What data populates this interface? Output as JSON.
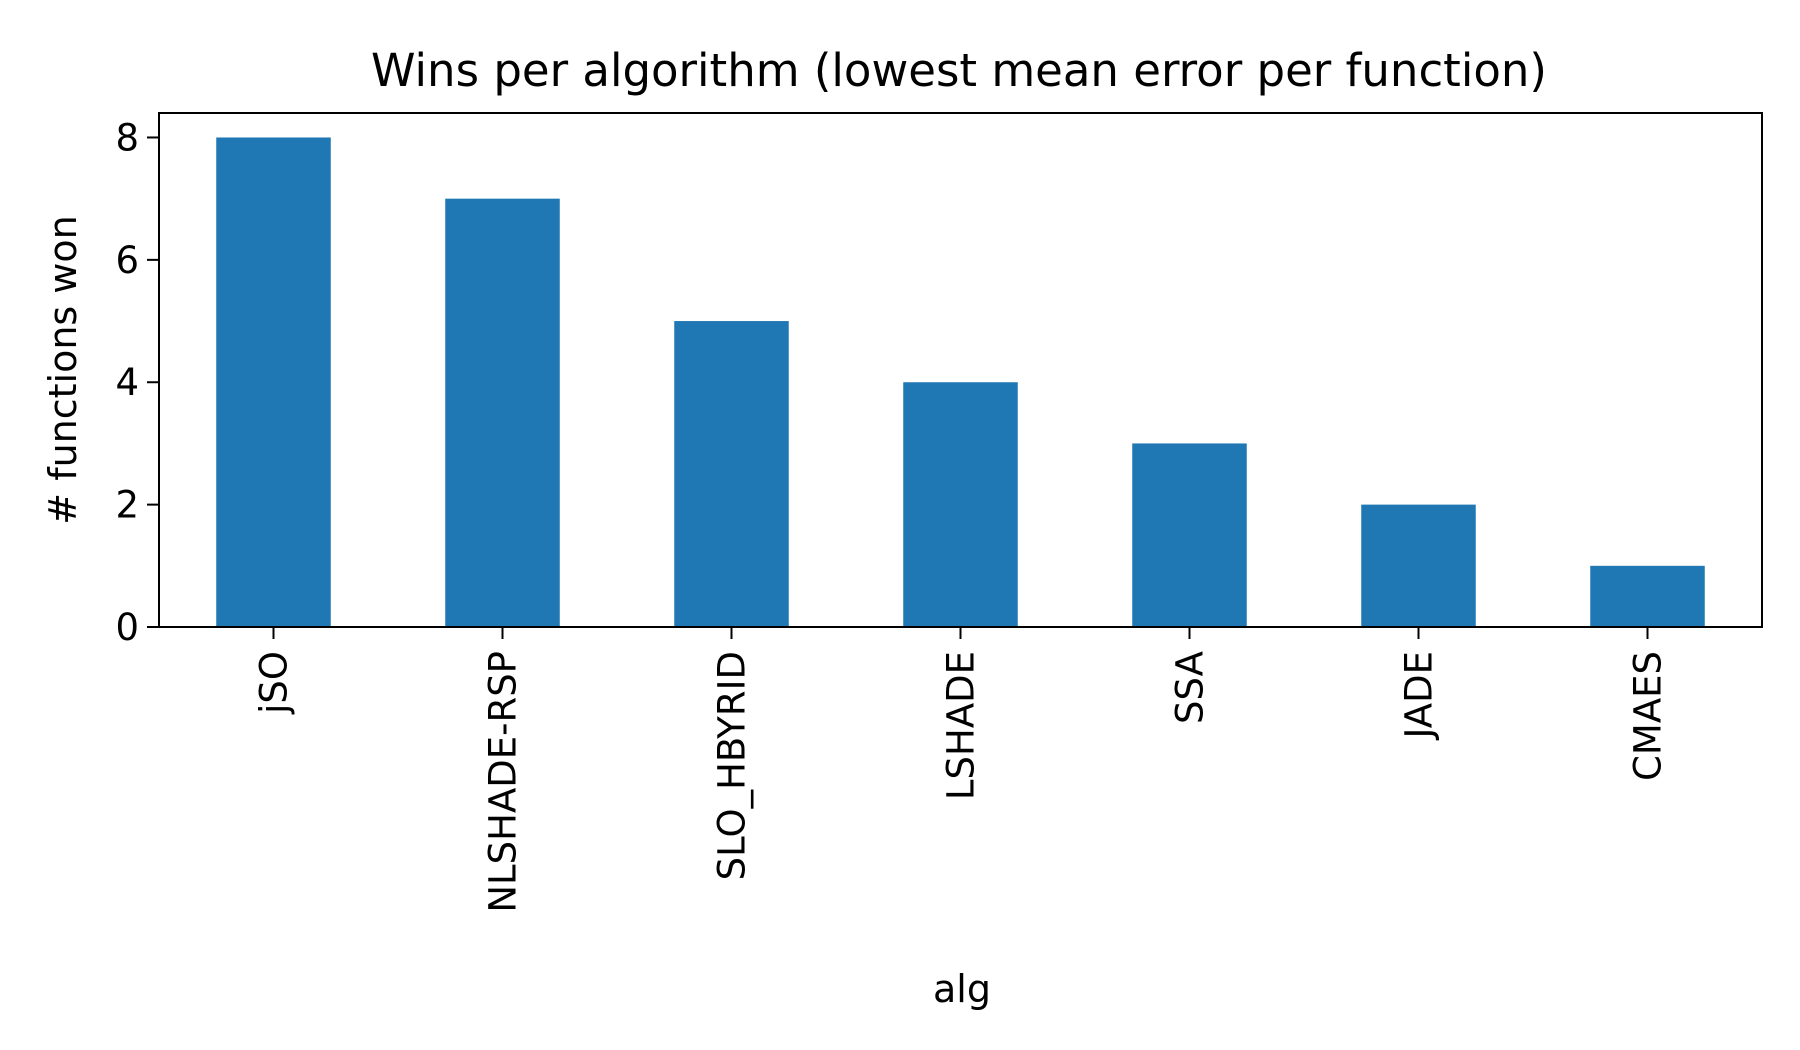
{
  "chart_data": {
    "type": "bar",
    "title": "Wins per algorithm (lowest mean error per function)",
    "xlabel": "alg",
    "ylabel": "# functions won",
    "categories": [
      "jSO",
      "NLSHADE-RSP",
      "SLO_HBYRID",
      "LSHADE",
      "SSA",
      "JADE",
      "CMAES"
    ],
    "values": [
      8,
      7,
      5,
      4,
      3,
      2,
      1
    ],
    "ylim": [
      0,
      8.4
    ],
    "yticks": [
      0,
      2,
      4,
      6,
      8
    ],
    "bar_color": "#1f77b4",
    "grid": false,
    "legend": false
  }
}
